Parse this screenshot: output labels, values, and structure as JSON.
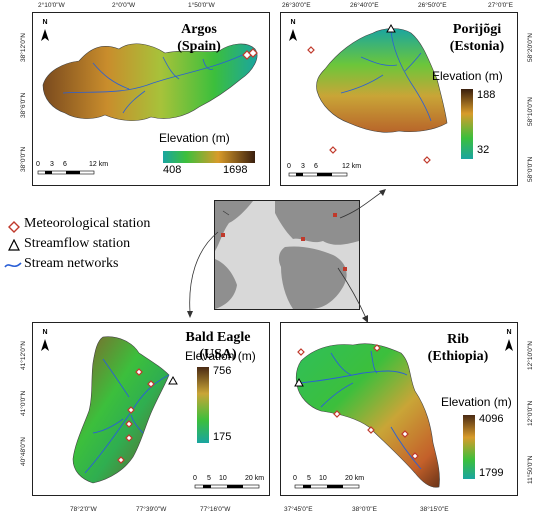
{
  "panels": {
    "argos": {
      "title_line1": "Argos",
      "title_line2": "(Spain)",
      "elev_title": "Elevation (m)",
      "elev_min": "408",
      "elev_max": "1698",
      "scale": [
        "0",
        "3",
        "6",
        "12 km"
      ],
      "top_ticks": [
        "2°10'0\"W",
        "2°0'0\"W",
        "1°50'0\"W"
      ],
      "left_ticks": [
        "38°12'0\"N",
        "38°6'0\"N",
        "38°0'0\"N"
      ]
    },
    "porijogi": {
      "title_line1": "Porijõgi",
      "title_line2": "(Estonia)",
      "elev_title": "Elevation (m)",
      "elev_max": "188",
      "elev_min": "32",
      "scale": [
        "0",
        "3",
        "6",
        "12 km"
      ],
      "top_ticks": [
        "26°30'0\"E",
        "26°40'0\"E",
        "26°50'0\"E",
        "27°0'0\"E"
      ],
      "right_ticks": [
        "58°20'0\"N",
        "58°10'0\"N",
        "58°0'0\"N"
      ]
    },
    "bald_eagle": {
      "title_line1": "Bald Eagle",
      "title_line2": "(USA)",
      "elev_title": "Elevation (m)",
      "elev_max": "756",
      "elev_min": "175",
      "scale": [
        "0",
        "5",
        "10",
        "20 km"
      ],
      "bottom_ticks": [
        "78°2'0\"W",
        "77°39'0\"W",
        "77°16'0\"W"
      ],
      "left_ticks": [
        "41°12'0\"N",
        "41°0'0\"N",
        "40°48'0\"N"
      ]
    },
    "rib": {
      "title_line1": "Rib",
      "title_line2": "(Ethiopia)",
      "elev_title": "Elevation (m)",
      "elev_max": "4096",
      "elev_min": "1799",
      "scale": [
        "0",
        "5",
        "10",
        "20 km"
      ],
      "bottom_ticks": [
        "37°45'0\"E",
        "38°0'0\"E",
        "38°15'0\"E"
      ],
      "right_ticks": [
        "12°10'0\"N",
        "12°0'0\"N",
        "11°50'0\"N"
      ]
    }
  },
  "north_label": "N",
  "legend": {
    "met_station": "Meteorological station",
    "streamflow_station": "Streamflow station",
    "stream_networks": "Stream networks"
  },
  "colors": {
    "station_marker": "#c0392b",
    "stream": "#2a5fd6",
    "elev_low": "#1aa5a0",
    "elev_mid": "#3cbf3c",
    "elev_high": "#d89b2a",
    "elev_top": "#4a2a14",
    "ocean": "#d8d8d8",
    "land": "#8f8f8f"
  }
}
